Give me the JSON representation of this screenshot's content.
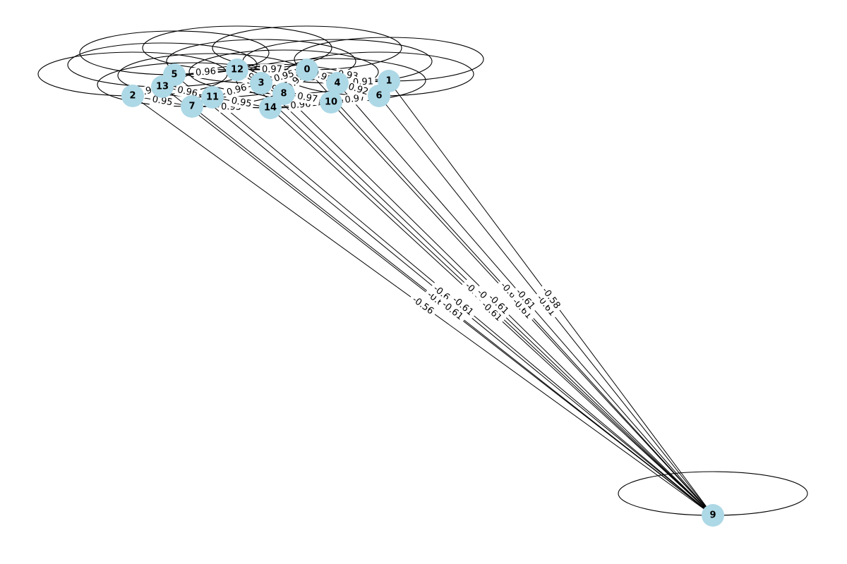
{
  "colors": {
    "node": "#add8e6",
    "edge": "#000000",
    "background": "#ffffff"
  },
  "nodes": [
    {
      "id": "0"
    },
    {
      "id": "1"
    },
    {
      "id": "2"
    },
    {
      "id": "3"
    },
    {
      "id": "4"
    },
    {
      "id": "5"
    },
    {
      "id": "6"
    },
    {
      "id": "7"
    },
    {
      "id": "8"
    },
    {
      "id": "9"
    },
    {
      "id": "10"
    },
    {
      "id": "11"
    },
    {
      "id": "12"
    },
    {
      "id": "13"
    },
    {
      "id": "14"
    }
  ],
  "self_loops": [
    "0",
    "1",
    "2",
    "3",
    "4",
    "5",
    "6",
    "7",
    "8",
    "9",
    "10",
    "11",
    "12",
    "13",
    "14"
  ],
  "edges": [
    {
      "source": "2",
      "target": "9",
      "weight": "-0.56"
    },
    {
      "source": "13",
      "target": "9",
      "weight": "-0.61"
    },
    {
      "source": "5",
      "target": "9",
      "weight": "-0.61"
    },
    {
      "source": "7",
      "target": "9",
      "weight": "-0.61"
    },
    {
      "source": "11",
      "target": "9",
      "weight": "-0.61"
    },
    {
      "source": "12",
      "target": "9",
      "weight": "-0.60"
    },
    {
      "source": "3",
      "target": "9",
      "weight": "-0.61"
    },
    {
      "source": "14",
      "target": "9",
      "weight": "-0.61"
    },
    {
      "source": "8",
      "target": "9",
      "weight": "-0.61"
    },
    {
      "source": "0",
      "target": "9",
      "weight": "-0.62"
    },
    {
      "source": "10",
      "target": "9",
      "weight": "-0.61"
    },
    {
      "source": "4",
      "target": "9",
      "weight": "-0.61"
    },
    {
      "source": "6",
      "target": "9",
      "weight": "-0.61"
    },
    {
      "source": "1",
      "target": "9",
      "weight": "-0.58"
    },
    {
      "source": "5",
      "target": "13",
      "weight": "0.96"
    },
    {
      "source": "13",
      "target": "11",
      "weight": "0.96"
    },
    {
      "source": "11",
      "target": "3",
      "weight": "0.96"
    },
    {
      "source": "7",
      "target": "14",
      "weight": "0.95"
    },
    {
      "source": "14",
      "target": "10",
      "weight": "0.96"
    },
    {
      "source": "10",
      "target": "6",
      "weight": "0.97"
    },
    {
      "source": "12",
      "target": "0",
      "weight": "0.97"
    },
    {
      "source": "3",
      "target": "0",
      "weight": "0.95"
    },
    {
      "source": "8",
      "target": "0",
      "weight": "0.95"
    },
    {
      "source": "0",
      "target": "1",
      "weight": "0.93"
    },
    {
      "source": "4",
      "target": "1",
      "weight": "0.91"
    },
    {
      "source": "4",
      "target": "6",
      "weight": "0.92"
    },
    {
      "source": "8",
      "target": "10",
      "weight": "0.97"
    },
    {
      "source": "2",
      "target": "13",
      "weight": "0.96"
    },
    {
      "source": "12",
      "target": "5",
      "weight": "0.96"
    },
    {
      "source": "3",
      "target": "8",
      "weight": "0.96"
    },
    {
      "source": "11",
      "target": "14",
      "weight": "0.95"
    },
    {
      "source": "2",
      "target": "7",
      "weight": "0.95"
    },
    {
      "source": "12",
      "target": "3",
      "weight": "0.96"
    },
    {
      "source": "0",
      "target": "4",
      "weight": "0.95"
    }
  ]
}
